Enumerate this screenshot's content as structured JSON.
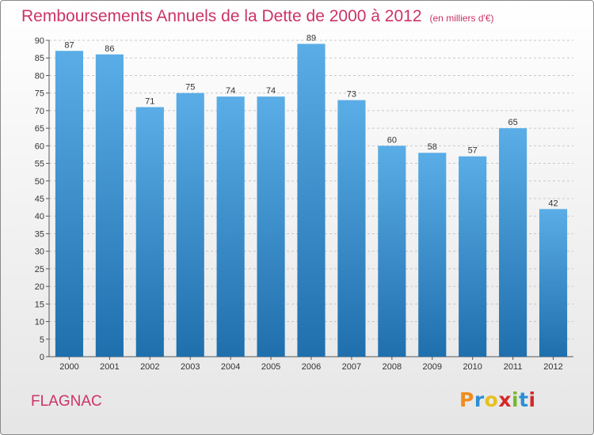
{
  "chart_data": {
    "type": "bar",
    "title": "Remboursements Annuels de la Dette de 2000 à 2012",
    "unit_label": "(en milliers d'€)",
    "categories": [
      "2000",
      "2001",
      "2002",
      "2003",
      "2004",
      "2005",
      "2006",
      "2007",
      "2008",
      "2009",
      "2010",
      "2011",
      "2012"
    ],
    "values": [
      87,
      86,
      71,
      75,
      74,
      74,
      89,
      73,
      60,
      58,
      57,
      65,
      42
    ],
    "ylim": [
      0,
      90
    ],
    "yticks": [
      0,
      5,
      10,
      15,
      20,
      25,
      30,
      35,
      40,
      45,
      50,
      55,
      60,
      65,
      70,
      75,
      80,
      85,
      90
    ],
    "xlabel": "",
    "ylabel": "",
    "grid": "horizontal dashed",
    "data_labels": true
  },
  "commune": "FLAGNAC",
  "logo": {
    "letters": [
      "P",
      "r",
      "o",
      "x",
      "i",
      "t",
      "i"
    ],
    "colors": [
      "#f08c1e",
      "#2c8fd6",
      "#e8c01a",
      "#d62828",
      "#78b82a",
      "#2c8fd6",
      "#d62828"
    ]
  },
  "colors": {
    "title": "#cc3366",
    "bar_top": "#5aade6",
    "bar_bottom": "#1f6fad",
    "grid": "#c8c8c8"
  }
}
